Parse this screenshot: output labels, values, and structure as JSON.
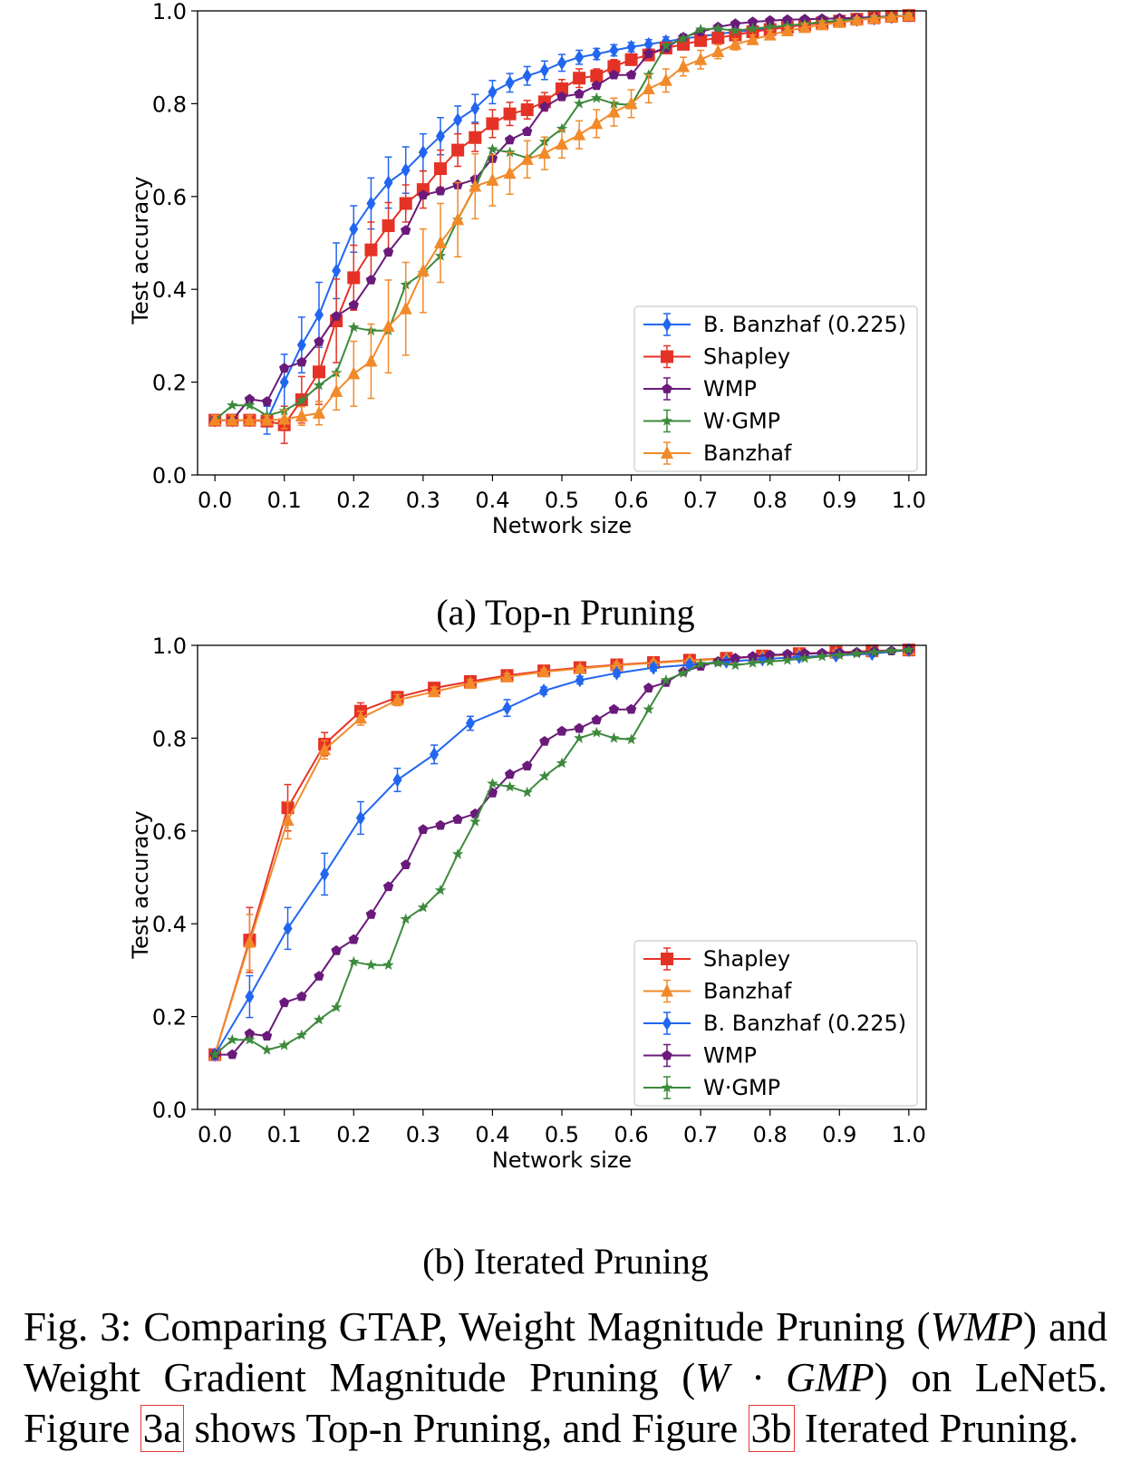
{
  "chart_data": [
    {
      "id": "top",
      "type": "line",
      "xlabel": "Network size",
      "ylabel": "Test accuracy",
      "xlim": [
        -0.025,
        1.025
      ],
      "ylim": [
        0,
        1.0
      ],
      "xticks": [
        "0.0",
        "0.1",
        "0.2",
        "0.3",
        "0.4",
        "0.5",
        "0.6",
        "0.7",
        "0.8",
        "0.9",
        "1.0"
      ],
      "yticks": [
        "0.0",
        "0.2",
        "0.4",
        "0.6",
        "0.8",
        "1.0"
      ],
      "legend_position": "lower-right",
      "series": [
        {
          "name": "B. Banzhaf (0.225)",
          "color": "#2166f0",
          "marker": "diamond",
          "x": [
            0.0,
            0.025,
            0.05,
            0.075,
            0.1,
            0.125,
            0.15,
            0.175,
            0.2,
            0.225,
            0.25,
            0.275,
            0.3,
            0.325,
            0.35,
            0.375,
            0.4,
            0.425,
            0.45,
            0.475,
            0.5,
            0.525,
            0.55,
            0.575,
            0.6,
            0.625,
            0.65,
            0.675,
            0.7,
            0.725,
            0.75,
            0.775,
            0.8,
            0.825,
            0.85,
            0.875,
            0.9,
            0.925,
            0.95,
            0.975,
            1.0
          ],
          "y": [
            0.118,
            0.118,
            0.118,
            0.118,
            0.2,
            0.28,
            0.345,
            0.44,
            0.53,
            0.585,
            0.63,
            0.657,
            0.695,
            0.73,
            0.765,
            0.79,
            0.825,
            0.845,
            0.86,
            0.872,
            0.888,
            0.9,
            0.907,
            0.915,
            0.922,
            0.928,
            0.934,
            0.94,
            0.945,
            0.95,
            0.955,
            0.958,
            0.962,
            0.966,
            0.97,
            0.974,
            0.978,
            0.981,
            0.984,
            0.987,
            0.99
          ],
          "err": [
            0.01,
            0.01,
            0.01,
            0.03,
            0.06,
            0.06,
            0.07,
            0.06,
            0.05,
            0.055,
            0.055,
            0.05,
            0.04,
            0.04,
            0.03,
            0.03,
            0.025,
            0.02,
            0.02,
            0.02,
            0.018,
            0.015,
            0.012,
            0.012,
            0.01,
            0.01,
            0.01,
            0.01,
            0.008,
            0.008,
            0.008,
            0.008,
            0.008,
            0.006,
            0.006,
            0.006,
            0.006,
            0.006,
            0.005,
            0.005,
            0.004
          ]
        },
        {
          "name": "Shapley",
          "color": "#e53226",
          "marker": "square",
          "x": [
            0.0,
            0.025,
            0.05,
            0.075,
            0.1,
            0.125,
            0.15,
            0.175,
            0.2,
            0.225,
            0.25,
            0.275,
            0.3,
            0.325,
            0.35,
            0.375,
            0.4,
            0.425,
            0.45,
            0.475,
            0.5,
            0.525,
            0.55,
            0.575,
            0.6,
            0.625,
            0.65,
            0.675,
            0.7,
            0.725,
            0.75,
            0.775,
            0.8,
            0.825,
            0.85,
            0.875,
            0.9,
            0.925,
            0.95,
            0.975,
            1.0
          ],
          "y": [
            0.118,
            0.118,
            0.118,
            0.116,
            0.108,
            0.162,
            0.222,
            0.332,
            0.425,
            0.485,
            0.537,
            0.585,
            0.615,
            0.66,
            0.7,
            0.727,
            0.757,
            0.778,
            0.787,
            0.804,
            0.832,
            0.855,
            0.86,
            0.88,
            0.895,
            0.905,
            0.92,
            0.928,
            0.936,
            0.942,
            0.948,
            0.955,
            0.96,
            0.965,
            0.97,
            0.974,
            0.978,
            0.982,
            0.985,
            0.988,
            0.99
          ],
          "err": [
            0.01,
            0.01,
            0.01,
            0.01,
            0.04,
            0.05,
            0.07,
            0.09,
            0.07,
            0.06,
            0.05,
            0.04,
            0.04,
            0.04,
            0.035,
            0.03,
            0.03,
            0.025,
            0.02,
            0.02,
            0.02,
            0.02,
            0.015,
            0.015,
            0.012,
            0.012,
            0.01,
            0.01,
            0.01,
            0.008,
            0.008,
            0.008,
            0.007,
            0.007,
            0.006,
            0.006,
            0.006,
            0.005,
            0.005,
            0.005,
            0.004
          ]
        },
        {
          "name": "WMP",
          "color": "#6a1a7a",
          "marker": "pentagon",
          "err_shown": false,
          "x": [
            0.0,
            0.025,
            0.05,
            0.075,
            0.1,
            0.125,
            0.15,
            0.175,
            0.2,
            0.225,
            0.25,
            0.275,
            0.3,
            0.325,
            0.35,
            0.375,
            0.4,
            0.425,
            0.45,
            0.475,
            0.5,
            0.525,
            0.55,
            0.575,
            0.6,
            0.625,
            0.65,
            0.675,
            0.7,
            0.725,
            0.75,
            0.775,
            0.8,
            0.825,
            0.85,
            0.875,
            0.9,
            0.925,
            0.95,
            0.975,
            1.0
          ],
          "y": [
            0.118,
            0.118,
            0.163,
            0.158,
            0.23,
            0.243,
            0.287,
            0.342,
            0.366,
            0.42,
            0.48,
            0.527,
            0.603,
            0.612,
            0.625,
            0.637,
            0.682,
            0.722,
            0.74,
            0.793,
            0.815,
            0.821,
            0.839,
            0.862,
            0.862,
            0.908,
            0.92,
            0.943,
            0.955,
            0.965,
            0.972,
            0.976,
            0.979,
            0.981,
            0.982,
            0.983,
            0.984,
            0.985,
            0.987,
            0.988,
            0.99
          ],
          "err": []
        },
        {
          "name": "W·GMP",
          "color": "#3d8a3d",
          "marker": "star",
          "err_shown": false,
          "x": [
            0.0,
            0.025,
            0.05,
            0.075,
            0.1,
            0.125,
            0.15,
            0.175,
            0.2,
            0.225,
            0.25,
            0.275,
            0.3,
            0.325,
            0.35,
            0.375,
            0.4,
            0.425,
            0.45,
            0.475,
            0.5,
            0.525,
            0.55,
            0.575,
            0.6,
            0.625,
            0.65,
            0.675,
            0.7,
            0.725,
            0.75,
            0.775,
            0.8,
            0.825,
            0.85,
            0.875,
            0.9,
            0.925,
            0.95,
            0.975,
            1.0
          ],
          "y": [
            0.118,
            0.15,
            0.15,
            0.128,
            0.138,
            0.16,
            0.193,
            0.22,
            0.318,
            0.311,
            0.311,
            0.41,
            0.435,
            0.472,
            0.55,
            0.62,
            0.702,
            0.695,
            0.683,
            0.718,
            0.746,
            0.8,
            0.812,
            0.8,
            0.797,
            0.862,
            0.925,
            0.94,
            0.96,
            0.962,
            0.957,
            0.962,
            0.965,
            0.968,
            0.972,
            0.976,
            0.979,
            0.982,
            0.985,
            0.988,
            0.99
          ],
          "err": []
        },
        {
          "name": "Banzhaf",
          "color": "#f28a2a",
          "marker": "triangle",
          "x": [
            0.0,
            0.025,
            0.05,
            0.075,
            0.1,
            0.125,
            0.15,
            0.175,
            0.2,
            0.225,
            0.25,
            0.275,
            0.3,
            0.325,
            0.35,
            0.375,
            0.4,
            0.425,
            0.45,
            0.475,
            0.5,
            0.525,
            0.55,
            0.575,
            0.6,
            0.625,
            0.65,
            0.675,
            0.7,
            0.725,
            0.75,
            0.775,
            0.8,
            0.825,
            0.85,
            0.875,
            0.9,
            0.925,
            0.95,
            0.975,
            1.0
          ],
          "y": [
            0.118,
            0.118,
            0.118,
            0.118,
            0.12,
            0.127,
            0.133,
            0.18,
            0.218,
            0.245,
            0.32,
            0.358,
            0.44,
            0.5,
            0.55,
            0.622,
            0.635,
            0.65,
            0.68,
            0.693,
            0.713,
            0.733,
            0.757,
            0.782,
            0.8,
            0.832,
            0.85,
            0.88,
            0.895,
            0.912,
            0.928,
            0.938,
            0.948,
            0.957,
            0.964,
            0.97,
            0.975,
            0.98,
            0.984,
            0.987,
            0.99
          ],
          "err": [
            0.01,
            0.01,
            0.01,
            0.01,
            0.02,
            0.02,
            0.025,
            0.04,
            0.07,
            0.08,
            0.1,
            0.1,
            0.09,
            0.085,
            0.08,
            0.07,
            0.055,
            0.045,
            0.04,
            0.035,
            0.03,
            0.03,
            0.03,
            0.03,
            0.03,
            0.03,
            0.025,
            0.02,
            0.02,
            0.015,
            0.012,
            0.01,
            0.01,
            0.008,
            0.008,
            0.008,
            0.007,
            0.006,
            0.006,
            0.005,
            0.005
          ]
        }
      ]
    },
    {
      "id": "bottom",
      "type": "line",
      "xlabel": "Network size",
      "ylabel": "Test accuracy",
      "xlim": [
        -0.025,
        1.025
      ],
      "ylim": [
        0,
        1.0
      ],
      "xticks": [
        "0.0",
        "0.1",
        "0.2",
        "0.3",
        "0.4",
        "0.5",
        "0.6",
        "0.7",
        "0.8",
        "0.9",
        "1.0"
      ],
      "yticks": [
        "0.0",
        "0.2",
        "0.4",
        "0.6",
        "0.8",
        "1.0"
      ],
      "legend_position": "lower-right",
      "series": [
        {
          "name": "Shapley",
          "color": "#e53226",
          "marker": "square",
          "x": [
            0.0,
            0.05,
            0.105,
            0.158,
            0.21,
            0.263,
            0.316,
            0.368,
            0.421,
            0.474,
            0.526,
            0.579,
            0.632,
            0.684,
            0.737,
            0.789,
            0.842,
            0.895,
            0.947,
            1.0
          ],
          "y": [
            0.118,
            0.365,
            0.65,
            0.787,
            0.858,
            0.888,
            0.908,
            0.922,
            0.935,
            0.945,
            0.952,
            0.958,
            0.963,
            0.968,
            0.972,
            0.977,
            0.982,
            0.985,
            0.988,
            0.99
          ],
          "err": [
            0.01,
            0.07,
            0.05,
            0.025,
            0.018,
            0.012,
            0.01,
            0.008,
            0.007,
            0.006,
            0.005,
            0.005,
            0.005,
            0.004,
            0.004,
            0.004,
            0.004,
            0.004,
            0.003,
            0.003
          ]
        },
        {
          "name": "Banzhaf",
          "color": "#f28a2a",
          "marker": "triangle",
          "x": [
            0.0,
            0.05,
            0.105,
            0.158,
            0.21,
            0.263,
            0.316,
            0.368,
            0.421,
            0.474,
            0.526,
            0.579,
            0.632,
            0.684,
            0.737,
            0.789,
            0.842,
            0.895,
            0.947,
            1.0
          ],
          "y": [
            0.118,
            0.36,
            0.623,
            0.775,
            0.843,
            0.882,
            0.9,
            0.918,
            0.932,
            0.943,
            0.95,
            0.957,
            0.962,
            0.967,
            0.971,
            0.976,
            0.981,
            0.984,
            0.987,
            0.99
          ],
          "err": [
            0.01,
            0.06,
            0.04,
            0.02,
            0.015,
            0.012,
            0.01,
            0.008,
            0.007,
            0.006,
            0.005,
            0.005,
            0.005,
            0.004,
            0.004,
            0.004,
            0.004,
            0.004,
            0.003,
            0.003
          ]
        },
        {
          "name": "B. Banzhaf (0.225)",
          "color": "#2166f0",
          "marker": "diamond",
          "x": [
            0.0,
            0.05,
            0.105,
            0.158,
            0.21,
            0.263,
            0.316,
            0.368,
            0.421,
            0.474,
            0.526,
            0.579,
            0.632,
            0.684,
            0.737,
            0.789,
            0.842,
            0.895,
            0.947,
            1.0
          ],
          "y": [
            0.118,
            0.243,
            0.39,
            0.507,
            0.628,
            0.71,
            0.765,
            0.832,
            0.865,
            0.902,
            0.925,
            0.94,
            0.952,
            0.958,
            0.965,
            0.97,
            0.975,
            0.978,
            0.982,
            0.99
          ],
          "err": [
            0.01,
            0.045,
            0.045,
            0.045,
            0.035,
            0.025,
            0.02,
            0.015,
            0.018,
            0.008,
            0.008,
            0.007,
            0.007,
            0.006,
            0.006,
            0.005,
            0.005,
            0.005,
            0.005,
            0.004
          ]
        },
        {
          "name": "WMP",
          "color": "#6a1a7a",
          "marker": "pentagon",
          "err_shown": false,
          "x": [
            0.0,
            0.025,
            0.05,
            0.075,
            0.1,
            0.125,
            0.15,
            0.175,
            0.2,
            0.225,
            0.25,
            0.275,
            0.3,
            0.325,
            0.35,
            0.375,
            0.4,
            0.425,
            0.45,
            0.475,
            0.5,
            0.525,
            0.55,
            0.575,
            0.6,
            0.625,
            0.65,
            0.675,
            0.7,
            0.725,
            0.75,
            0.775,
            0.8,
            0.825,
            0.85,
            0.875,
            0.9,
            0.925,
            0.95,
            0.975,
            1.0
          ],
          "y": [
            0.118,
            0.118,
            0.163,
            0.158,
            0.23,
            0.243,
            0.287,
            0.342,
            0.366,
            0.42,
            0.48,
            0.527,
            0.603,
            0.612,
            0.625,
            0.637,
            0.682,
            0.722,
            0.74,
            0.793,
            0.815,
            0.821,
            0.839,
            0.862,
            0.862,
            0.908,
            0.92,
            0.943,
            0.955,
            0.965,
            0.972,
            0.976,
            0.979,
            0.981,
            0.982,
            0.983,
            0.984,
            0.985,
            0.987,
            0.988,
            0.99
          ],
          "err": []
        },
        {
          "name": "W·GMP",
          "color": "#3d8a3d",
          "marker": "star",
          "err_shown": false,
          "x": [
            0.0,
            0.025,
            0.05,
            0.075,
            0.1,
            0.125,
            0.15,
            0.175,
            0.2,
            0.225,
            0.25,
            0.275,
            0.3,
            0.325,
            0.35,
            0.375,
            0.4,
            0.425,
            0.45,
            0.475,
            0.5,
            0.525,
            0.55,
            0.575,
            0.6,
            0.625,
            0.65,
            0.675,
            0.7,
            0.725,
            0.75,
            0.775,
            0.8,
            0.825,
            0.85,
            0.875,
            0.9,
            0.925,
            0.95,
            0.975,
            1.0
          ],
          "y": [
            0.118,
            0.15,
            0.15,
            0.128,
            0.138,
            0.16,
            0.193,
            0.22,
            0.318,
            0.311,
            0.311,
            0.41,
            0.435,
            0.472,
            0.55,
            0.62,
            0.702,
            0.695,
            0.683,
            0.718,
            0.746,
            0.8,
            0.812,
            0.8,
            0.797,
            0.862,
            0.925,
            0.94,
            0.96,
            0.962,
            0.957,
            0.962,
            0.965,
            0.968,
            0.972,
            0.976,
            0.979,
            0.982,
            0.985,
            0.988,
            0.99
          ],
          "err": []
        }
      ]
    }
  ],
  "subcaptions": {
    "a": "(a) Top-n Pruning",
    "b": "(b) Iterated Pruning"
  },
  "caption": {
    "part1": "Fig. 3: Comparing GTAP, Weight Magnitude Pruning (",
    "math1": "WMP",
    "part2": ") and Weight Gradient Magnitude Pruning (",
    "math2": "W · GMP",
    "part3": ") on LeNet5. Figure ",
    "ref_a": "3a",
    "part4": " shows Top-n Pruning, and Figure ",
    "ref_b": "3b",
    "part5": " Iterated Pruning."
  }
}
